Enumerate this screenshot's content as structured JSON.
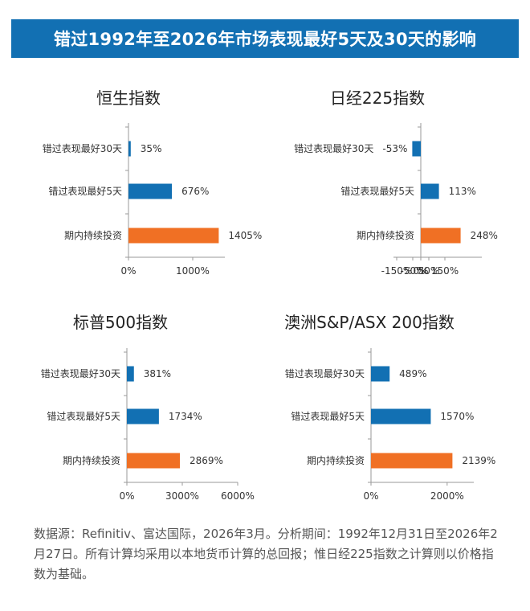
{
  "header": {
    "title": "错过1992年至2026年市场表现最好5天及30天的影响"
  },
  "colors": {
    "blue": "#1270b3",
    "orange": "#f07024",
    "axis": "#9a9a9a"
  },
  "chart_data": [
    {
      "type": "bar",
      "title": "恒生指数",
      "categories": [
        "错过表现最好30天",
        "错过表现最好5天",
        "期内持续投资"
      ],
      "values": [
        35,
        676,
        1405
      ],
      "value_labels": [
        "35%",
        "676%",
        "1405%"
      ],
      "bar_colors": [
        "#1270b3",
        "#1270b3",
        "#f07024"
      ],
      "xlim": [
        0,
        1500
      ],
      "x_ticks": [
        0,
        1000
      ],
      "x_tick_labels": [
        "0%",
        "1000%"
      ]
    },
    {
      "type": "bar",
      "title": "日经225指数",
      "categories": [
        "错过表现最好30天",
        "错过表现最好5天",
        "期内持续投资"
      ],
      "values": [
        -53,
        113,
        248
      ],
      "value_labels": [
        "-53%",
        "113%",
        "248%"
      ],
      "bar_colors": [
        "#1270b3",
        "#1270b3",
        "#f07024"
      ],
      "xlim": [
        -150,
        350
      ],
      "x_ticks": [
        -150,
        -50,
        0,
        50,
        150
      ],
      "x_tick_labels": [
        "-150%",
        "-50%",
        "0%",
        "50%",
        "150%"
      ]
    },
    {
      "type": "bar",
      "title": "标普500指数",
      "categories": [
        "错过表现最好30天",
        "错过表现最好5天",
        "期内持续投资"
      ],
      "values": [
        381,
        1734,
        2869
      ],
      "value_labels": [
        "381%",
        "1734%",
        "2869%"
      ],
      "bar_colors": [
        "#1270b3",
        "#1270b3",
        "#f07024"
      ],
      "xlim": [
        0,
        6000
      ],
      "x_ticks": [
        0,
        3000,
        6000
      ],
      "x_tick_labels": [
        "0%",
        "3000%",
        "6000%"
      ]
    },
    {
      "type": "bar",
      "title": "澳洲S&P/ASX 200指数",
      "categories": [
        "错过表现最好30天",
        "错过表现最好5天",
        "期内持续投资"
      ],
      "values": [
        489,
        1570,
        2139
      ],
      "value_labels": [
        "489%",
        "1570%",
        "2139%"
      ],
      "bar_colors": [
        "#1270b3",
        "#1270b3",
        "#f07024"
      ],
      "xlim": [
        0,
        2700
      ],
      "x_ticks": [
        0,
        2000
      ],
      "x_tick_labels": [
        "0%",
        "2000%"
      ]
    }
  ],
  "footnote": "数据源：Refinitiv、富达国际，2026年3月。分析期间：1992年12月31日至2026年2月27日。所有计算均采用以本地货币计算的总回报；惟日经225指数之计算则以价格指数为基础。"
}
